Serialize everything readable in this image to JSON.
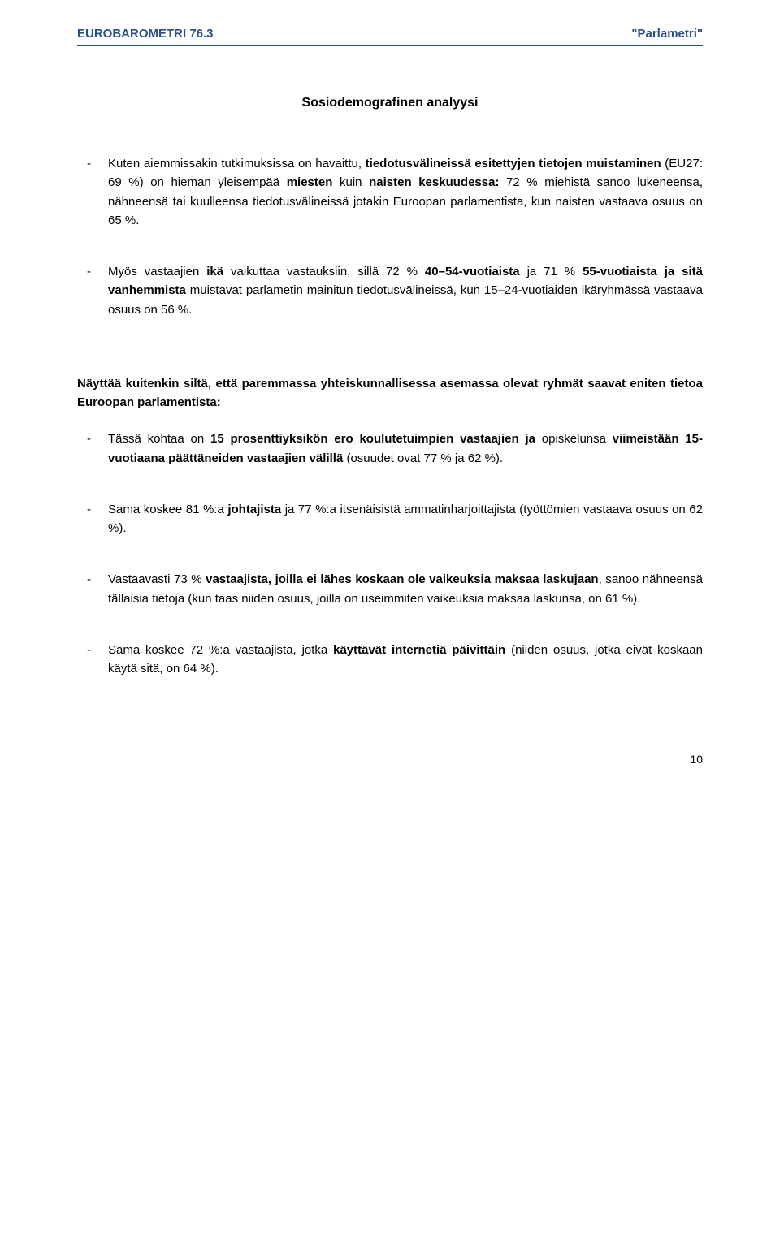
{
  "colors": {
    "header_text": "#2a4e8a",
    "header_rule": "#2a4e8a",
    "body_text": "#000000",
    "background": "#ffffff"
  },
  "typography": {
    "body_family": "Verdana, Geneva, sans-serif",
    "body_size_pt": 11,
    "header_size_pt": 11,
    "title_size_pt": 12,
    "line_height": 1.55
  },
  "header": {
    "left": "EUROBAROMETRI 76.3",
    "right": "\"Parlametri\""
  },
  "title": "Sosiodemografinen analyysi",
  "bullets_top": [
    {
      "dash": "-",
      "runs": [
        {
          "t": "Kuten aiemmissakin tutkimuksissa on havaittu, ",
          "b": false
        },
        {
          "t": "tiedotusvälineissä esitettyjen tietojen muistaminen",
          "b": true
        },
        {
          "t": " (EU27: 69 %) on hieman yleisempää ",
          "b": false
        },
        {
          "t": "miesten",
          "b": true
        },
        {
          "t": " kuin ",
          "b": false
        },
        {
          "t": "naisten keskuudessa:",
          "b": true
        },
        {
          "t": " 72 % miehistä sanoo lukeneensa, nähneensä tai kuulleensa tiedotusvälineissä jotakin Euroopan parlamentista, kun naisten vastaava osuus on 65 %.",
          "b": false
        }
      ]
    },
    {
      "dash": "-",
      "runs": [
        {
          "t": "Myös vastaajien ",
          "b": false
        },
        {
          "t": "ikä",
          "b": true
        },
        {
          "t": " vaikuttaa vastauksiin, sillä 72 % ",
          "b": false
        },
        {
          "t": "40–54-vuotiaista",
          "b": true
        },
        {
          "t": " ja 71 % ",
          "b": false
        },
        {
          "t": "55-vuotiaista ja sitä vanhemmista",
          "b": true
        },
        {
          "t": " muistavat parlametin mainitun tiedotusvälineissä, kun 15–24-vuotiaiden ikäryhmässä vastaava osuus on 56 %.",
          "b": false
        }
      ]
    }
  ],
  "lead": "Näyttää kuitenkin siltä, että paremmassa yhteiskunnallisessa asemassa olevat ryhmät saavat eniten tietoa Euroopan parlamentista:",
  "bullets_bottom": [
    {
      "dash": "-",
      "runs": [
        {
          "t": "Tässä kohtaa on ",
          "b": false
        },
        {
          "t": "15 prosenttiyksikön ero koulutetuimpien vastaajien ja",
          "b": true
        },
        {
          "t": " opiskelunsa ",
          "b": false
        },
        {
          "t": "viimeistään 15-vuotiaana päättäneiden vastaajien välillä",
          "b": true
        },
        {
          "t": " (osuudet ovat 77 % ja 62 %).",
          "b": false
        }
      ]
    },
    {
      "dash": "-",
      "runs": [
        {
          "t": "Sama koskee 81 %:a ",
          "b": false
        },
        {
          "t": "johtajista",
          "b": true
        },
        {
          "t": " ja 77 %:a itsenäisistä ammatinharjoittajista (työttömien vastaava osuus on 62 %).",
          "b": false
        }
      ]
    },
    {
      "dash": "-",
      "runs": [
        {
          "t": "Vastaavasti 73 % ",
          "b": false
        },
        {
          "t": "vastaajista, joilla ei lähes koskaan ole vaikeuksia maksaa laskujaan",
          "b": true
        },
        {
          "t": ", sanoo nähneensä tällaisia tietoja (kun taas niiden osuus, joilla on useimmiten vaikeuksia maksaa laskunsa, on 61 %).",
          "b": false
        }
      ]
    },
    {
      "dash": "-",
      "runs": [
        {
          "t": "Sama koskee 72 %:a vastaajista, jotka ",
          "b": false
        },
        {
          "t": "käyttävät internetiä päivittäin",
          "b": true
        },
        {
          "t": " (niiden osuus, jotka eivät koskaan käytä sitä, on 64 %).",
          "b": false
        }
      ]
    }
  ],
  "page_number": "10"
}
